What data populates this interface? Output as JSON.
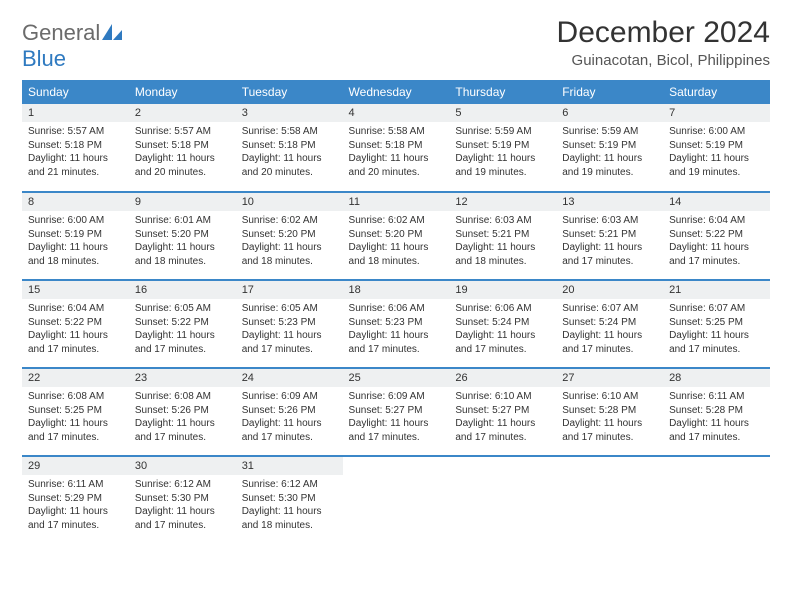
{
  "brand": {
    "word1": "General",
    "word2": "Blue"
  },
  "title": "December 2024",
  "location": "Guinacotan, Bicol, Philippines",
  "colors": {
    "header_bg": "#3b87c8",
    "header_text": "#ffffff",
    "daynum_bg": "#eef0f1",
    "border": "#3b87c8",
    "brand_gray": "#6b6b6b",
    "brand_blue": "#2f7ac0",
    "text": "#333333"
  },
  "weekdays": [
    "Sunday",
    "Monday",
    "Tuesday",
    "Wednesday",
    "Thursday",
    "Friday",
    "Saturday"
  ],
  "days": [
    {
      "n": 1,
      "sr": "Sunrise: 5:57 AM",
      "ss": "Sunset: 5:18 PM",
      "dl": "Daylight: 11 hours and 21 minutes."
    },
    {
      "n": 2,
      "sr": "Sunrise: 5:57 AM",
      "ss": "Sunset: 5:18 PM",
      "dl": "Daylight: 11 hours and 20 minutes."
    },
    {
      "n": 3,
      "sr": "Sunrise: 5:58 AM",
      "ss": "Sunset: 5:18 PM",
      "dl": "Daylight: 11 hours and 20 minutes."
    },
    {
      "n": 4,
      "sr": "Sunrise: 5:58 AM",
      "ss": "Sunset: 5:18 PM",
      "dl": "Daylight: 11 hours and 20 minutes."
    },
    {
      "n": 5,
      "sr": "Sunrise: 5:59 AM",
      "ss": "Sunset: 5:19 PM",
      "dl": "Daylight: 11 hours and 19 minutes."
    },
    {
      "n": 6,
      "sr": "Sunrise: 5:59 AM",
      "ss": "Sunset: 5:19 PM",
      "dl": "Daylight: 11 hours and 19 minutes."
    },
    {
      "n": 7,
      "sr": "Sunrise: 6:00 AM",
      "ss": "Sunset: 5:19 PM",
      "dl": "Daylight: 11 hours and 19 minutes."
    },
    {
      "n": 8,
      "sr": "Sunrise: 6:00 AM",
      "ss": "Sunset: 5:19 PM",
      "dl": "Daylight: 11 hours and 18 minutes."
    },
    {
      "n": 9,
      "sr": "Sunrise: 6:01 AM",
      "ss": "Sunset: 5:20 PM",
      "dl": "Daylight: 11 hours and 18 minutes."
    },
    {
      "n": 10,
      "sr": "Sunrise: 6:02 AM",
      "ss": "Sunset: 5:20 PM",
      "dl": "Daylight: 11 hours and 18 minutes."
    },
    {
      "n": 11,
      "sr": "Sunrise: 6:02 AM",
      "ss": "Sunset: 5:20 PM",
      "dl": "Daylight: 11 hours and 18 minutes."
    },
    {
      "n": 12,
      "sr": "Sunrise: 6:03 AM",
      "ss": "Sunset: 5:21 PM",
      "dl": "Daylight: 11 hours and 18 minutes."
    },
    {
      "n": 13,
      "sr": "Sunrise: 6:03 AM",
      "ss": "Sunset: 5:21 PM",
      "dl": "Daylight: 11 hours and 17 minutes."
    },
    {
      "n": 14,
      "sr": "Sunrise: 6:04 AM",
      "ss": "Sunset: 5:22 PM",
      "dl": "Daylight: 11 hours and 17 minutes."
    },
    {
      "n": 15,
      "sr": "Sunrise: 6:04 AM",
      "ss": "Sunset: 5:22 PM",
      "dl": "Daylight: 11 hours and 17 minutes."
    },
    {
      "n": 16,
      "sr": "Sunrise: 6:05 AM",
      "ss": "Sunset: 5:22 PM",
      "dl": "Daylight: 11 hours and 17 minutes."
    },
    {
      "n": 17,
      "sr": "Sunrise: 6:05 AM",
      "ss": "Sunset: 5:23 PM",
      "dl": "Daylight: 11 hours and 17 minutes."
    },
    {
      "n": 18,
      "sr": "Sunrise: 6:06 AM",
      "ss": "Sunset: 5:23 PM",
      "dl": "Daylight: 11 hours and 17 minutes."
    },
    {
      "n": 19,
      "sr": "Sunrise: 6:06 AM",
      "ss": "Sunset: 5:24 PM",
      "dl": "Daylight: 11 hours and 17 minutes."
    },
    {
      "n": 20,
      "sr": "Sunrise: 6:07 AM",
      "ss": "Sunset: 5:24 PM",
      "dl": "Daylight: 11 hours and 17 minutes."
    },
    {
      "n": 21,
      "sr": "Sunrise: 6:07 AM",
      "ss": "Sunset: 5:25 PM",
      "dl": "Daylight: 11 hours and 17 minutes."
    },
    {
      "n": 22,
      "sr": "Sunrise: 6:08 AM",
      "ss": "Sunset: 5:25 PM",
      "dl": "Daylight: 11 hours and 17 minutes."
    },
    {
      "n": 23,
      "sr": "Sunrise: 6:08 AM",
      "ss": "Sunset: 5:26 PM",
      "dl": "Daylight: 11 hours and 17 minutes."
    },
    {
      "n": 24,
      "sr": "Sunrise: 6:09 AM",
      "ss": "Sunset: 5:26 PM",
      "dl": "Daylight: 11 hours and 17 minutes."
    },
    {
      "n": 25,
      "sr": "Sunrise: 6:09 AM",
      "ss": "Sunset: 5:27 PM",
      "dl": "Daylight: 11 hours and 17 minutes."
    },
    {
      "n": 26,
      "sr": "Sunrise: 6:10 AM",
      "ss": "Sunset: 5:27 PM",
      "dl": "Daylight: 11 hours and 17 minutes."
    },
    {
      "n": 27,
      "sr": "Sunrise: 6:10 AM",
      "ss": "Sunset: 5:28 PM",
      "dl": "Daylight: 11 hours and 17 minutes."
    },
    {
      "n": 28,
      "sr": "Sunrise: 6:11 AM",
      "ss": "Sunset: 5:28 PM",
      "dl": "Daylight: 11 hours and 17 minutes."
    },
    {
      "n": 29,
      "sr": "Sunrise: 6:11 AM",
      "ss": "Sunset: 5:29 PM",
      "dl": "Daylight: 11 hours and 17 minutes."
    },
    {
      "n": 30,
      "sr": "Sunrise: 6:12 AM",
      "ss": "Sunset: 5:30 PM",
      "dl": "Daylight: 11 hours and 17 minutes."
    },
    {
      "n": 31,
      "sr": "Sunrise: 6:12 AM",
      "ss": "Sunset: 5:30 PM",
      "dl": "Daylight: 11 hours and 18 minutes."
    }
  ],
  "layout": {
    "first_weekday_index": 0,
    "rows": 5,
    "cols": 7
  }
}
